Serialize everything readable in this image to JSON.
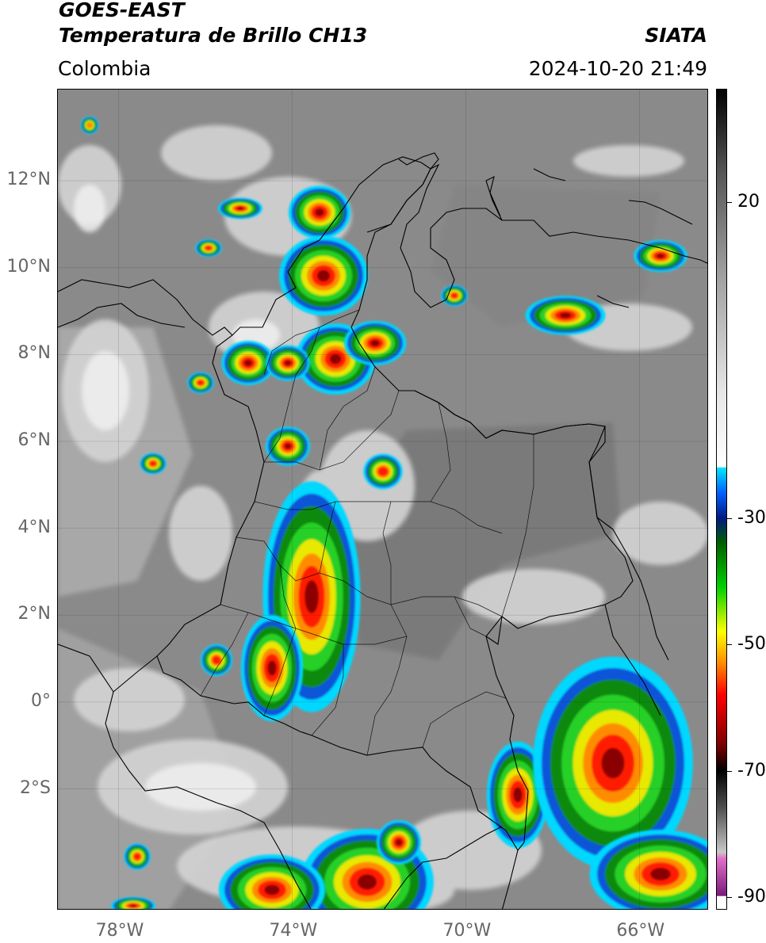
{
  "header": {
    "title_line1": "GOES-EAST",
    "title_line2": "Temperatura de Brillo CH13",
    "region": "Colombia",
    "agency": "SIATA",
    "datetime": "2024-10-20 21:49"
  },
  "map": {
    "lon_range": [
      -79.4,
      -64.4
    ],
    "lat_range": [
      -4.8,
      14.1
    ],
    "lat_ticks": [
      {
        "lat": 12,
        "label": "12°N"
      },
      {
        "lat": 10,
        "label": "10°N"
      },
      {
        "lat": 8,
        "label": "8°N"
      },
      {
        "lat": 6,
        "label": "6°N"
      },
      {
        "lat": 4,
        "label": "4°N"
      },
      {
        "lat": 2,
        "label": "2°N"
      },
      {
        "lat": 0,
        "label": "0°"
      },
      {
        "lat": -2,
        "label": "2°S"
      }
    ],
    "lon_ticks": [
      {
        "lon": -78,
        "label": "78°W"
      },
      {
        "lon": -74,
        "label": "74°W"
      },
      {
        "lon": -70,
        "label": "70°W"
      },
      {
        "lon": -66,
        "label": "66°W"
      }
    ]
  },
  "colorbar": {
    "range": [
      -92,
      38
    ],
    "ticks": [
      {
        "value": 20,
        "label": "20"
      },
      {
        "value": -30,
        "label": "-30"
      },
      {
        "value": -50,
        "label": "-50"
      },
      {
        "value": -70,
        "label": "-70"
      },
      {
        "value": -90,
        "label": "-90"
      }
    ],
    "stops": [
      {
        "value": -92,
        "color": "#ffffff"
      },
      {
        "value": -90,
        "color": "#ffffff"
      },
      {
        "value": -89.9,
        "color": "#7a1a7a"
      },
      {
        "value": -84,
        "color": "#e070c8"
      },
      {
        "value": -83,
        "color": "#c8c8c8"
      },
      {
        "value": -76,
        "color": "#505050"
      },
      {
        "value": -70,
        "color": "#000000"
      },
      {
        "value": -66,
        "color": "#7a0000"
      },
      {
        "value": -58,
        "color": "#ff0000"
      },
      {
        "value": -53,
        "color": "#ff8c00"
      },
      {
        "value": -48,
        "color": "#ffff00"
      },
      {
        "value": -41,
        "color": "#00d000"
      },
      {
        "value": -34,
        "color": "#006000"
      },
      {
        "value": -30,
        "color": "#001a80"
      },
      {
        "value": -26,
        "color": "#0060ff"
      },
      {
        "value": -22,
        "color": "#00e8ff"
      },
      {
        "value": -21.9,
        "color": "#ffffff"
      },
      {
        "value": -10,
        "color": "#e6e6e6"
      },
      {
        "value": 10,
        "color": "#9a9a9a"
      },
      {
        "value": 25,
        "color": "#555555"
      },
      {
        "value": 38,
        "color": "#000000"
      }
    ]
  }
}
